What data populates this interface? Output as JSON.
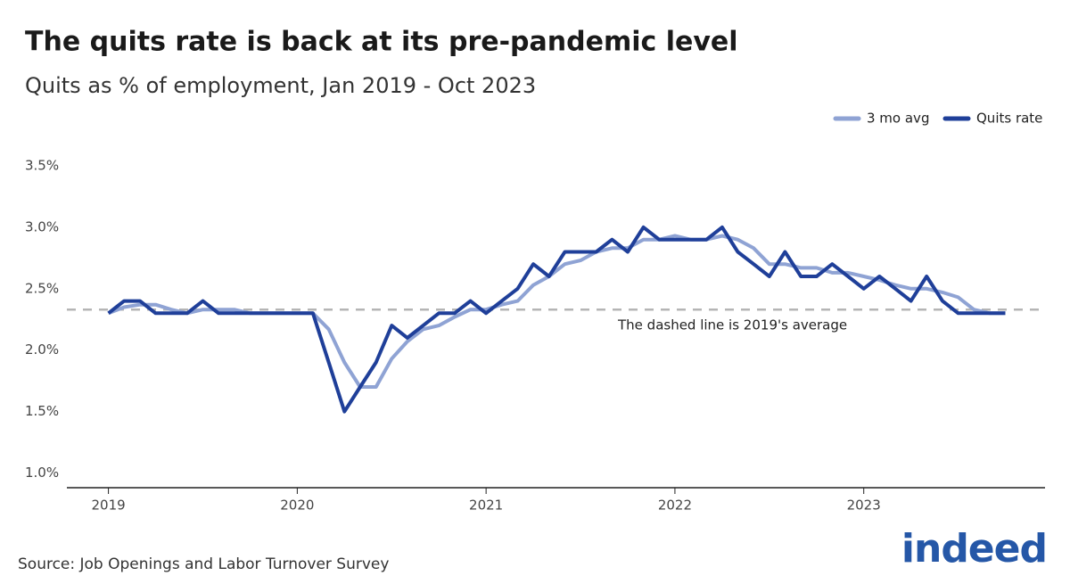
{
  "chart_data": {
    "type": "line",
    "title": "The quits rate is back at its pre-pandemic level",
    "subtitle": "Quits as % of employment, Jan 2019 - Oct 2023",
    "source": "Source: Job Openings and Labor Turnover Survey",
    "logo": "indeed",
    "annotation": "The dashed line is 2019's average",
    "reference_line": 2.33,
    "x": [
      2019.0,
      2019.083,
      2019.167,
      2019.25,
      2019.333,
      2019.417,
      2019.5,
      2019.583,
      2019.667,
      2019.75,
      2019.833,
      2019.917,
      2020.0,
      2020.083,
      2020.167,
      2020.25,
      2020.333,
      2020.417,
      2020.5,
      2020.583,
      2020.667,
      2020.75,
      2020.833,
      2020.917,
      2021.0,
      2021.083,
      2021.167,
      2021.25,
      2021.333,
      2021.417,
      2021.5,
      2021.583,
      2021.667,
      2021.75,
      2021.833,
      2021.917,
      2022.0,
      2022.083,
      2022.167,
      2022.25,
      2022.333,
      2022.417,
      2022.5,
      2022.583,
      2022.667,
      2022.75,
      2022.833,
      2022.917,
      2023.0,
      2023.083,
      2023.167,
      2023.25,
      2023.333,
      2023.417,
      2023.5,
      2023.583,
      2023.667,
      2023.75
    ],
    "series": [
      {
        "name": "3 mo avg",
        "color": "#8fa3d4",
        "values": [
          2.3,
          2.35,
          2.37,
          2.37,
          2.33,
          2.3,
          2.33,
          2.33,
          2.33,
          2.3,
          2.3,
          2.3,
          2.3,
          2.3,
          2.17,
          1.9,
          1.7,
          1.7,
          1.93,
          2.07,
          2.17,
          2.2,
          2.27,
          2.33,
          2.33,
          2.37,
          2.4,
          2.53,
          2.6,
          2.7,
          2.73,
          2.8,
          2.83,
          2.83,
          2.9,
          2.9,
          2.93,
          2.9,
          2.9,
          2.93,
          2.9,
          2.83,
          2.7,
          2.7,
          2.67,
          2.67,
          2.63,
          2.63,
          2.6,
          2.57,
          2.53,
          2.5,
          2.5,
          2.47,
          2.43,
          2.33,
          2.3,
          2.3
        ]
      },
      {
        "name": "Quits rate",
        "color": "#1f3f99",
        "values": [
          2.3,
          2.4,
          2.4,
          2.3,
          2.3,
          2.3,
          2.4,
          2.3,
          2.3,
          2.3,
          2.3,
          2.3,
          2.3,
          2.3,
          1.9,
          1.5,
          1.7,
          1.9,
          2.2,
          2.1,
          2.2,
          2.3,
          2.3,
          2.4,
          2.3,
          2.4,
          2.5,
          2.7,
          2.6,
          2.8,
          2.8,
          2.8,
          2.9,
          2.8,
          3.0,
          2.9,
          2.9,
          2.9,
          2.9,
          3.0,
          2.8,
          2.7,
          2.6,
          2.8,
          2.6,
          2.6,
          2.7,
          2.6,
          2.5,
          2.6,
          2.5,
          2.4,
          2.6,
          2.4,
          2.3,
          2.3,
          2.3,
          2.3
        ]
      }
    ],
    "xlim": [
      2018.78,
      2023.96
    ],
    "xticks": [
      2019,
      2020,
      2021,
      2022,
      2023
    ],
    "ylim": [
      0.88,
      3.5
    ],
    "yticks": [
      {
        "value": 1.0,
        "label": "1.0%"
      },
      {
        "value": 1.5,
        "label": "1.5%"
      },
      {
        "value": 2.0,
        "label": "2.0%"
      },
      {
        "value": 2.5,
        "label": "2.5%"
      },
      {
        "value": 3.0,
        "label": "3.0%"
      },
      {
        "value": 3.5,
        "label": "3.5%"
      }
    ],
    "legend": "top-right"
  }
}
